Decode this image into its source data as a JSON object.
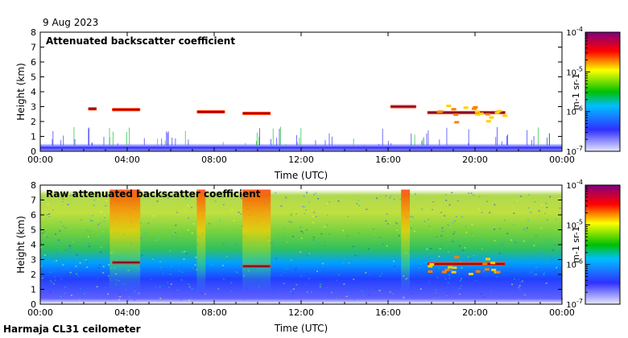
{
  "date_label": "9 Aug 2023",
  "footer_label": "Harmaja CL31 ceilometer",
  "chart_data": [
    {
      "type": "heatmap",
      "title": "Attenuated backscatter coefficient",
      "xlabel": "Time (UTC)",
      "ylabel": "Height (km)",
      "xlim": [
        0,
        24
      ],
      "ylim": [
        0,
        8
      ],
      "x_ticks": [
        0,
        4,
        8,
        12,
        16,
        20,
        24
      ],
      "x_tick_labels": [
        "00:00",
        "04:00",
        "08:00",
        "12:00",
        "16:00",
        "20:00",
        "00:00"
      ],
      "y_ticks": [
        0,
        1,
        2,
        3,
        4,
        5,
        6,
        7,
        8
      ],
      "y_tick_labels": [
        "0",
        "1",
        "2",
        "3",
        "4",
        "5",
        "6",
        "7",
        "8"
      ],
      "colorbar": {
        "label": "m-1 sr-1",
        "scale": "log",
        "range": [
          1e-07,
          0.0001
        ],
        "ticks": [
          {
            "base": "10",
            "exp": "-4"
          },
          {
            "base": "10",
            "exp": "-5"
          },
          {
            "base": "10",
            "exp": "-6"
          },
          {
            "base": "10",
            "exp": "-7"
          }
        ]
      },
      "features": [
        {
          "kind": "boundary_layer",
          "t_start": 0,
          "t_end": 24,
          "top_km": 0.5
        },
        {
          "kind": "cloud",
          "t_start": 2.2,
          "t_end": 2.6,
          "height_km": 2.85
        },
        {
          "kind": "cloud",
          "t_start": 3.3,
          "t_end": 4.6,
          "height_km": 2.8
        },
        {
          "kind": "cloud",
          "t_start": 7.2,
          "t_end": 8.5,
          "height_km": 2.65
        },
        {
          "kind": "cloud",
          "t_start": 9.3,
          "t_end": 10.6,
          "height_km": 2.55
        },
        {
          "kind": "cloud",
          "t_start": 16.1,
          "t_end": 17.3,
          "height_km": 3.0
        },
        {
          "kind": "cloud",
          "t_start": 17.8,
          "t_end": 21.4,
          "height_km": 2.6
        }
      ]
    },
    {
      "type": "heatmap",
      "title": "Raw attenuated backscatter coefficient",
      "xlabel": "Time (UTC)",
      "ylabel": "Height (km)",
      "xlim": [
        0,
        24
      ],
      "ylim": [
        0,
        8
      ],
      "x_ticks": [
        0,
        4,
        8,
        12,
        16,
        20,
        24
      ],
      "x_tick_labels": [
        "00:00",
        "04:00",
        "08:00",
        "12:00",
        "16:00",
        "20:00",
        "00:00"
      ],
      "y_ticks": [
        0,
        1,
        2,
        3,
        4,
        5,
        6,
        7,
        8
      ],
      "y_tick_labels": [
        "0",
        "1",
        "2",
        "3",
        "4",
        "5",
        "6",
        "7",
        "8"
      ],
      "colorbar": {
        "label": "m-1 sr-1",
        "scale": "log",
        "range": [
          1e-07,
          0.0001
        ],
        "ticks": [
          {
            "base": "10",
            "exp": "-4"
          },
          {
            "base": "10",
            "exp": "-5"
          },
          {
            "base": "10",
            "exp": "-6"
          },
          {
            "base": "10",
            "exp": "-7"
          }
        ]
      },
      "features": [
        {
          "kind": "noise_column",
          "t_start": 3.2,
          "t_end": 4.6
        },
        {
          "kind": "noise_column",
          "t_start": 7.2,
          "t_end": 7.6
        },
        {
          "kind": "noise_column",
          "t_start": 9.3,
          "t_end": 10.6
        },
        {
          "kind": "noise_column",
          "t_start": 16.6,
          "t_end": 17.0
        },
        {
          "kind": "cloud",
          "t_start": 3.3,
          "t_end": 4.6,
          "height_km": 2.8
        },
        {
          "kind": "cloud",
          "t_start": 9.3,
          "t_end": 10.6,
          "height_km": 2.55
        },
        {
          "kind": "cloud",
          "t_start": 17.8,
          "t_end": 21.4,
          "height_km": 2.7
        }
      ]
    }
  ],
  "colors": {
    "scale": [
      "#e0e0ff",
      "#2020ff",
      "#00c000",
      "#ffff00",
      "#ff0000",
      "#800080"
    ]
  }
}
